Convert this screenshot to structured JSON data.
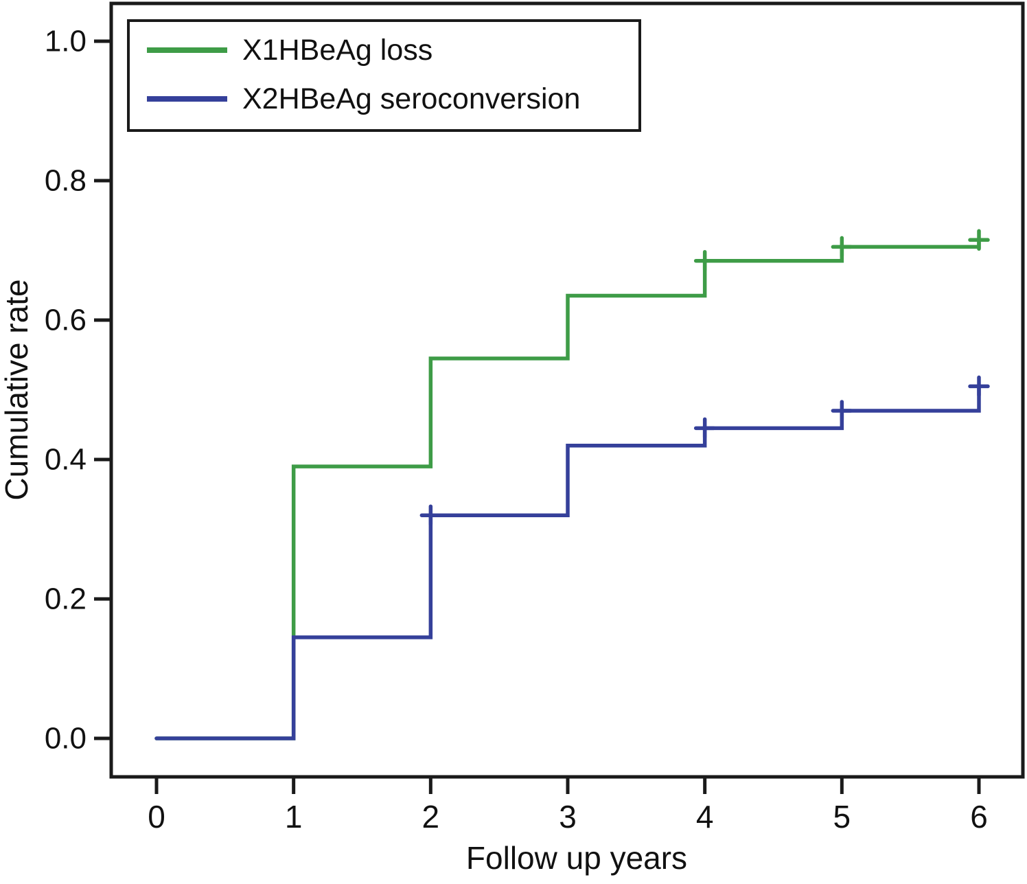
{
  "figure": {
    "background": "#ffffff",
    "frame_color": "#1a1a1a",
    "text_color": "#111111"
  },
  "chart_data": {
    "type": "line",
    "subtype": "kaplan-meier-step",
    "title": "",
    "xlabel": "Follow up years",
    "ylabel": "Cumulative rate",
    "xlim": [
      0,
      6
    ],
    "ylim": [
      0.0,
      1.0
    ],
    "xticks": {
      "values": [
        0,
        1,
        2,
        3,
        4,
        5,
        6
      ],
      "labels": [
        "0",
        "1",
        "2",
        "3",
        "4",
        "5",
        "6"
      ]
    },
    "yticks": {
      "values": [
        0.0,
        0.2,
        0.4,
        0.6,
        0.8,
        1.0
      ],
      "labels": [
        "0.0",
        "0.2",
        "0.4",
        "0.6",
        "0.8",
        "1.0"
      ]
    },
    "grid": false,
    "legend": {
      "position": "top-left",
      "border": true
    },
    "series": [
      {
        "name": "X1HBeAg loss",
        "color": "#3E9C47",
        "start": [
          0,
          0.0
        ],
        "steps": [
          [
            1,
            0.39
          ],
          [
            2,
            0.545
          ],
          [
            3,
            0.635
          ],
          [
            4,
            0.685
          ],
          [
            5,
            0.705
          ],
          [
            6,
            0.715
          ]
        ],
        "censors": [
          [
            4,
            0.685
          ],
          [
            5,
            0.705
          ],
          [
            6,
            0.715
          ]
        ]
      },
      {
        "name": "X2HBeAg seroconversion",
        "color": "#35409A",
        "start": [
          0,
          0.0
        ],
        "steps": [
          [
            1,
            0.145
          ],
          [
            2,
            0.32
          ],
          [
            3,
            0.42
          ],
          [
            4,
            0.445
          ],
          [
            5,
            0.47
          ],
          [
            6,
            0.505
          ]
        ],
        "censors": [
          [
            2,
            0.32
          ],
          [
            4,
            0.445
          ],
          [
            5,
            0.47
          ],
          [
            6,
            0.505
          ]
        ]
      }
    ]
  }
}
